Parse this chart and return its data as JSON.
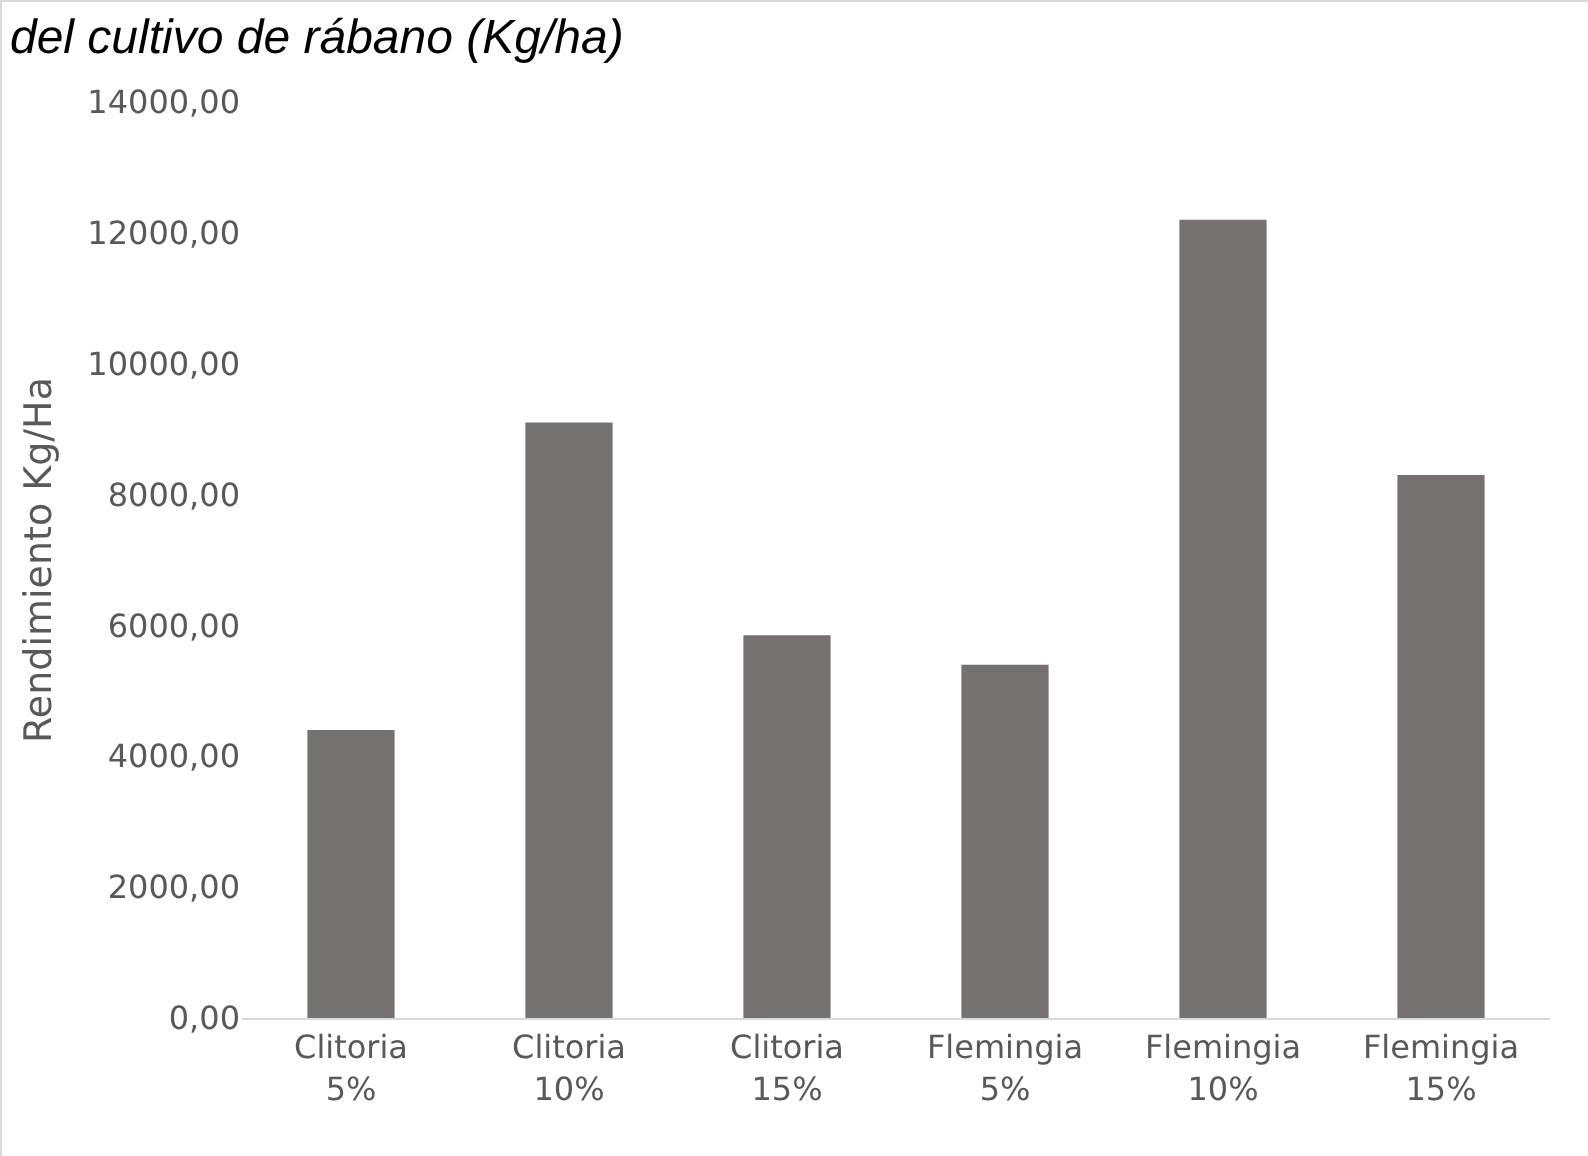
{
  "chart_data": {
    "type": "bar",
    "title": "del cultivo de rábano (Kg/ha)",
    "ylabel": "Rendimiento Kg/Ha",
    "categories": [
      "Clitoria 5%",
      "Clitoria 10%",
      "Clitoria 15%",
      "Flemingia 5%",
      "Flemingia 10%",
      "Flemingia 15%"
    ],
    "values": [
      4400,
      9100,
      5850,
      5400,
      12200,
      8300
    ],
    "color": "#767171",
    "ylim": [
      0,
      14000
    ],
    "yticks": [
      {
        "value": 0,
        "label": "0,00"
      },
      {
        "value": 2000,
        "label": "2000,00"
      },
      {
        "value": 4000,
        "label": "4000,00"
      },
      {
        "value": 6000,
        "label": "6000,00"
      },
      {
        "value": 8000,
        "label": "8000,00"
      },
      {
        "value": 10000,
        "label": "10000,00"
      },
      {
        "value": 12000,
        "label": "12000,00"
      },
      {
        "value": 14000,
        "label": "14000,00"
      }
    ],
    "grid": false,
    "legend": false
  }
}
